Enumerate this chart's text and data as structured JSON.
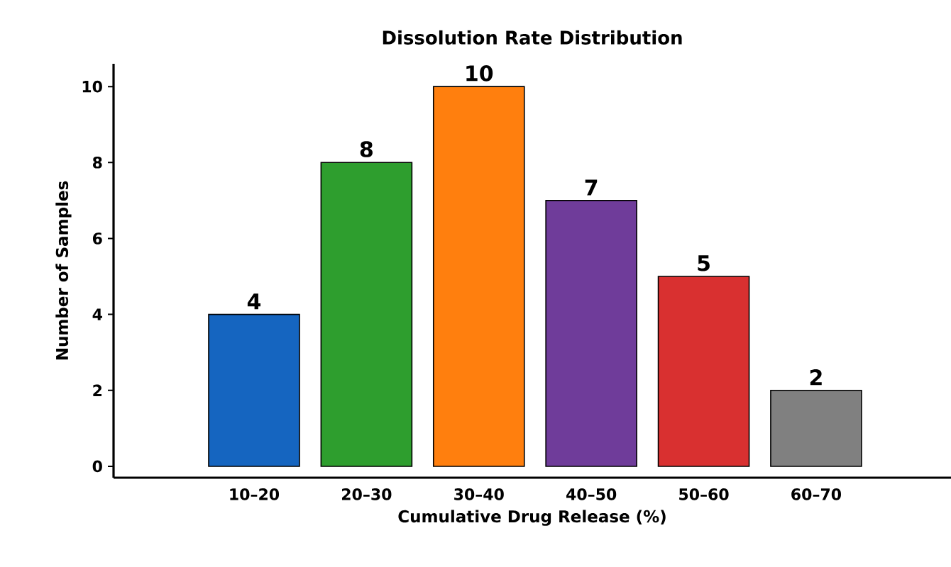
{
  "chart_data": {
    "type": "bar",
    "title": "Dissolution Rate Distribution",
    "xlabel": "Cumulative Drug Release (%)",
    "ylabel": "Number of Samples",
    "categories": [
      "10–20",
      "20–30",
      "30–40",
      "40–50",
      "50–60",
      "60–70"
    ],
    "values": [
      4,
      8,
      10,
      7,
      5,
      2
    ],
    "colors": [
      "#1565c0",
      "#2e9e2e",
      "#ff7f0e",
      "#6f3c9a",
      "#d93030",
      "#808080"
    ],
    "data_labels": true,
    "ylim": [
      -0.3,
      10.6
    ],
    "yticks": [
      0,
      2,
      4,
      6,
      8,
      10
    ],
    "grid": false
  }
}
